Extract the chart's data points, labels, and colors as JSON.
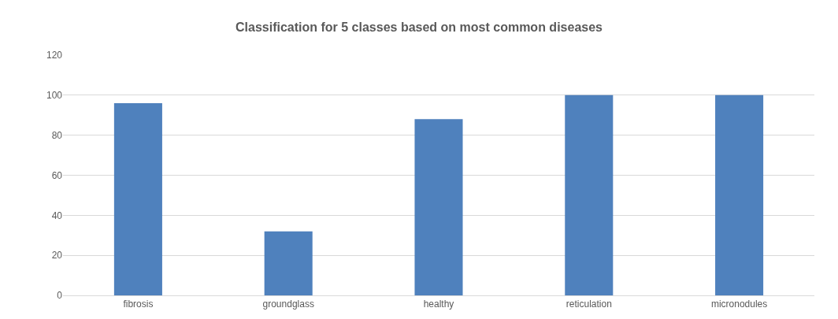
{
  "chart_data": {
    "type": "bar",
    "title": "Classification for 5 classes based on most common diseases",
    "categories": [
      "fibrosis",
      "groundglass",
      "healthy",
      "reticulation",
      "micronodules"
    ],
    "values": [
      96,
      32,
      88,
      100,
      100
    ],
    "color": "#4f81bd",
    "ylim": [
      0,
      120
    ],
    "yticks": [
      0,
      20,
      40,
      60,
      80,
      100,
      120
    ],
    "grid": "y",
    "legend": false
  }
}
